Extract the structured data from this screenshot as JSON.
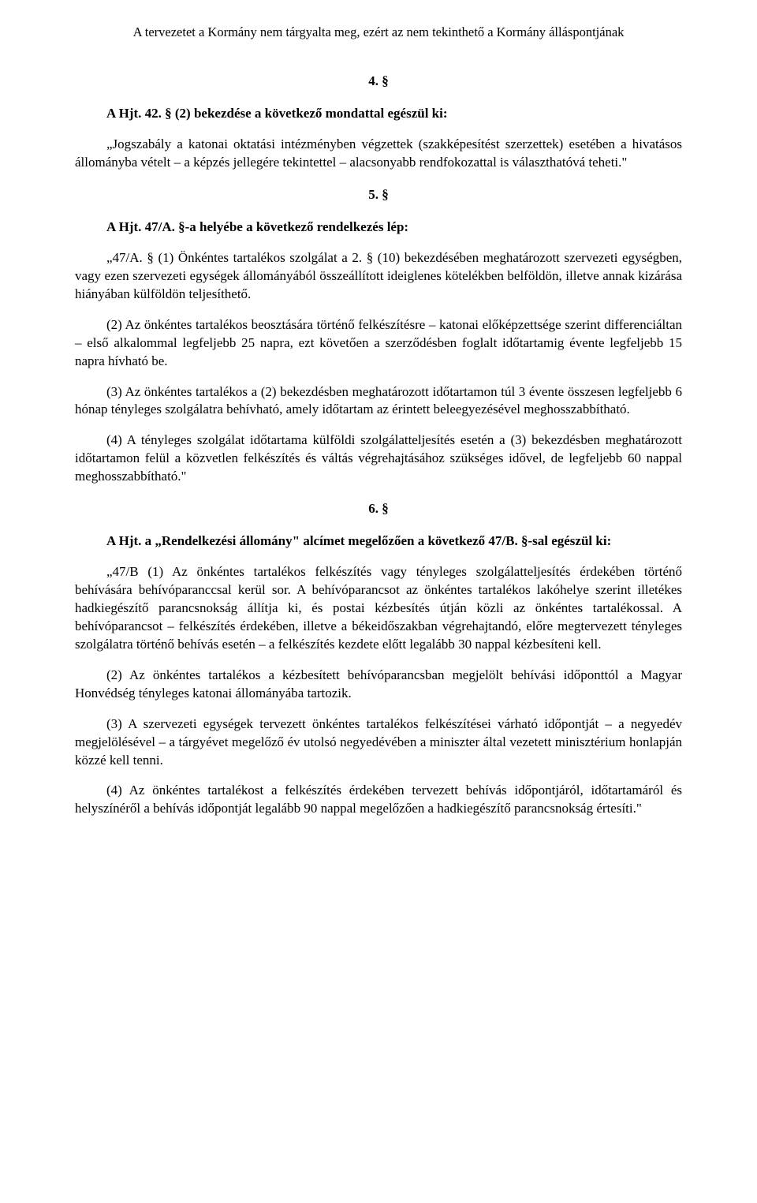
{
  "header": "A tervezetet a Kormány nem tárgyalta meg, ezért az nem tekinthető a Kormány álláspontjának",
  "sec4": {
    "num": "4. §",
    "heading": "A Hjt. 42. § (2) bekezdése a következő mondattal egészül ki:",
    "p1": "„Jogszabály a katonai oktatási intézményben végzettek (szakképesítést szerzettek) esetében a hivatásos állományba vételt – a képzés jellegére tekintettel – alacsonyabb rendfokozattal is választhatóvá teheti.\""
  },
  "sec5": {
    "num": "5. §",
    "heading": "A Hjt. 47/A. §-a helyébe a következő rendelkezés lép:",
    "p1": "„47/A. § (1) Önkéntes tartalékos szolgálat a 2. § (10) bekezdésében meghatározott szervezeti egységben, vagy ezen szervezeti egységek állományából összeállított ideiglenes kötelékben belföldön, illetve annak kizárása hiányában külföldön teljesíthető.",
    "p2": "(2) Az önkéntes tartalékos beosztására történő felkészítésre – katonai előképzettsége szerint differenciáltan – első alkalommal legfeljebb 25 napra, ezt követően a szerződésben foglalt időtartamig évente legfeljebb 15 napra hívható be.",
    "p3": "(3) Az önkéntes tartalékos a (2) bekezdésben meghatározott időtartamon túl 3 évente összesen legfeljebb 6 hónap tényleges szolgálatra behívható, amely időtartam az érintett beleegyezésével meghosszabbítható.",
    "p4": "(4) A tényleges szolgálat időtartama külföldi szolgálatteljesítés esetén a (3) bekezdésben meghatározott időtartamon felül a közvetlen felkészítés és váltás végrehajtásához szükséges idővel, de legfeljebb 60 nappal meghosszabbítható.\""
  },
  "sec6": {
    "num": "6. §",
    "heading_bold": "A Hjt. a „Rendelkezési állomány\" alcímet megelőzően a következő 47/B. §-sal egészül ki:",
    "p1": "„47/B (1) Az önkéntes tartalékos felkészítés vagy tényleges szolgálatteljesítés érdekében történő behívására behívóparanccsal kerül sor. A behívóparancsot az önkéntes tartalékos lakóhelye szerint illetékes hadkiegészítő parancsnokság állítja ki, és postai kézbesítés útján közli az önkéntes tartalékossal. A behívóparancsot – felkészítés érdekében, illetve a békeidőszakban végrehajtandó, előre megtervezett tényleges szolgálatra történő behívás esetén – a felkészítés kezdete előtt legalább 30 nappal kézbesíteni kell.",
    "p2": "(2) Az önkéntes tartalékos a kézbesített behívóparancsban megjelölt behívási időponttól a Magyar Honvédség tényleges katonai állományába tartozik.",
    "p3": "(3) A szervezeti egységek tervezett önkéntes tartalékos felkészítései várható időpontját – a negyedév megjelölésével – a tárgyévet megelőző év utolsó negyedévében a miniszter által vezetett minisztérium honlapján közzé kell tenni.",
    "p4": "(4) Az önkéntes tartalékost a felkészítés érdekében tervezett behívás időpontjáról, időtartamáról és helyszínéről a behívás időpontját legalább 90 nappal megelőzően a hadkiegészítő parancsnokság értesíti.\""
  }
}
